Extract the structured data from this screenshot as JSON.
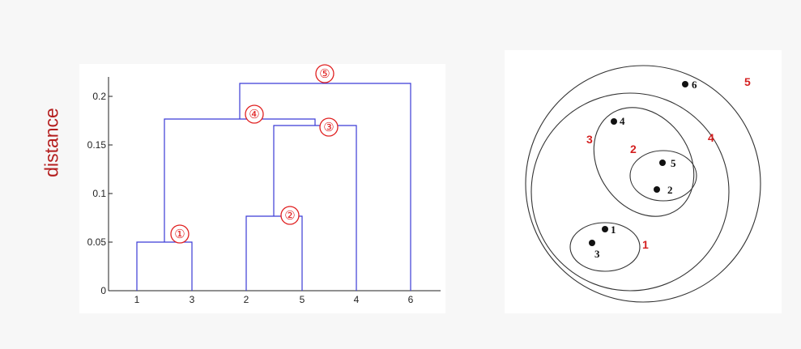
{
  "y_axis_label": "distance",
  "colors": {
    "accent": "#b41e1e",
    "merge_line": "#3b3bd6",
    "axis": "#222222",
    "circle_number": "#e02020"
  },
  "dendrogram": {
    "y_ticks": [
      "0",
      "0.05",
      "0.1",
      "0.15",
      "0.2"
    ],
    "leaves": [
      "1",
      "3",
      "2",
      "5",
      "4",
      "6"
    ],
    "merge_labels": [
      "①",
      "②",
      "③",
      "④",
      "⑤"
    ]
  },
  "chart_data": {
    "type": "dendrogram",
    "ylabel": "distance",
    "ylim": [
      0,
      0.225
    ],
    "leaves": [
      "1",
      "3",
      "2",
      "5",
      "4",
      "6"
    ],
    "merges": [
      {
        "step": 1,
        "members": [
          "1",
          "3"
        ],
        "height": 0.05
      },
      {
        "step": 2,
        "members": [
          "2",
          "5"
        ],
        "height": 0.077
      },
      {
        "step": 3,
        "members": [
          "2,5",
          "4"
        ],
        "height": 0.17
      },
      {
        "step": 4,
        "members": [
          "1,3",
          "2,5,4"
        ],
        "height": 0.177
      },
      {
        "step": 5,
        "members": [
          "1,3,2,5,4",
          "6"
        ],
        "height": 0.213
      }
    ]
  },
  "nested_clusters": {
    "points": [
      "1",
      "3",
      "4",
      "5",
      "2",
      "6"
    ],
    "cluster_labels": [
      "1",
      "2",
      "3",
      "4",
      "5"
    ]
  }
}
